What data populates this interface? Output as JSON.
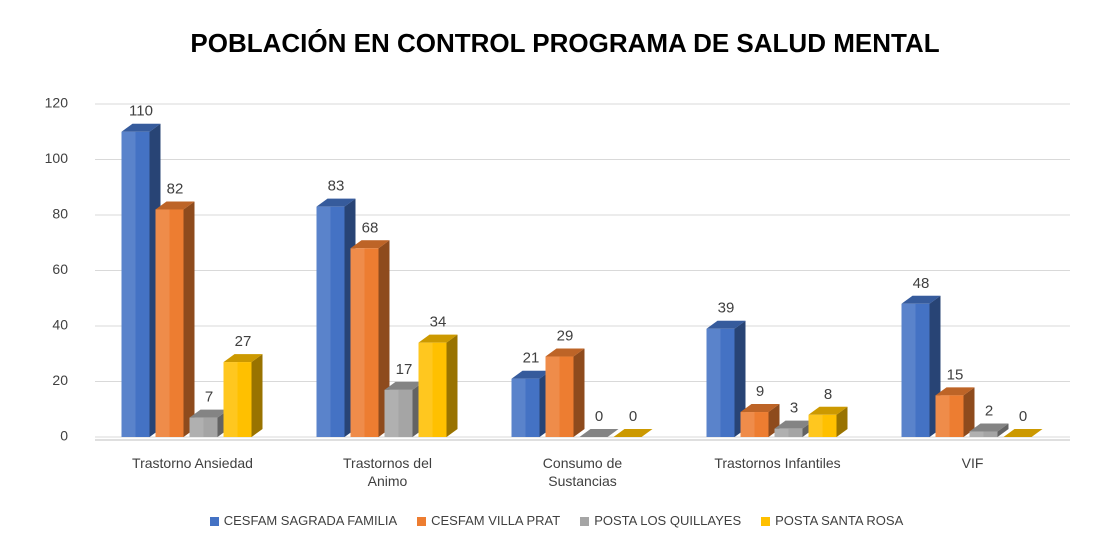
{
  "chart_data": {
    "type": "bar3d",
    "title": "POBLACIÓN EN CONTROL PROGRAMA DE SALUD MENTAL",
    "categories": [
      "Trastorno Ansiedad",
      "Trastornos del Animo",
      "Consumo de Sustancias",
      "Trastornos Infantiles",
      "VIF"
    ],
    "series": [
      {
        "name": "CESFAM SAGRADA FAMILIA",
        "color": "#4472c4",
        "values": [
          110,
          83,
          21,
          39,
          48
        ]
      },
      {
        "name": "CESFAM VILLA PRAT",
        "color": "#ed7d31",
        "values": [
          82,
          68,
          29,
          9,
          15
        ]
      },
      {
        "name": "POSTA LOS QUILLAYES",
        "color": "#a5a5a5",
        "values": [
          7,
          17,
          0,
          3,
          2
        ]
      },
      {
        "name": "POSTA SANTA ROSA",
        "color": "#ffc000",
        "values": [
          27,
          34,
          0,
          8,
          0
        ]
      }
    ],
    "ylim": [
      0,
      120
    ],
    "yticks": [
      0,
      20,
      40,
      60,
      80,
      100,
      120
    ],
    "grid": true,
    "legend": "bottom"
  }
}
